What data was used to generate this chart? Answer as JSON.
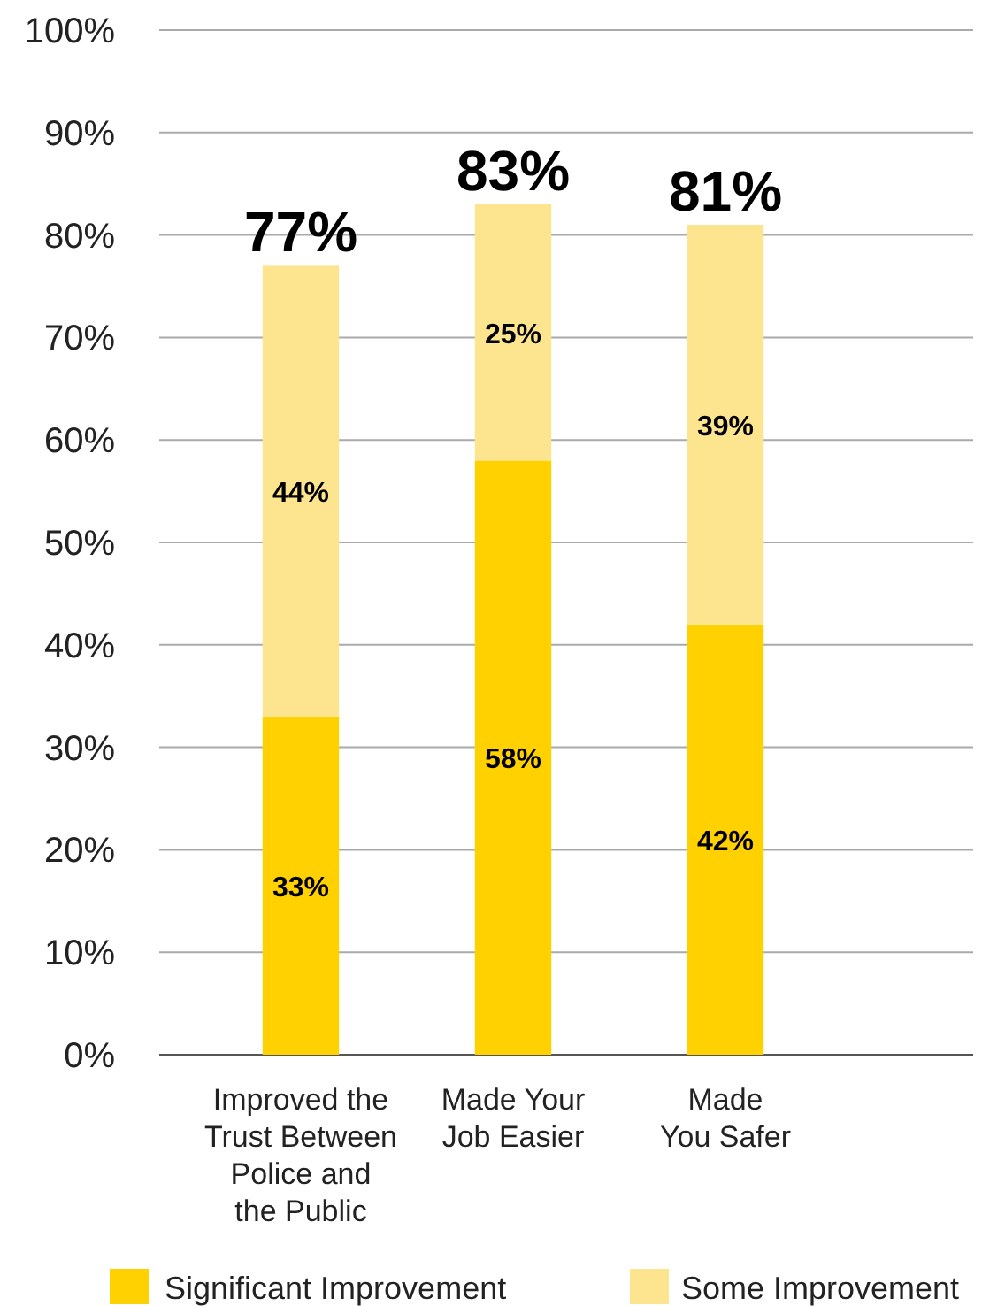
{
  "chart_data": {
    "type": "bar",
    "stacked": true,
    "categories": [
      "Improved the\nTrust Between\nPolice and\nthe Public",
      "Made Your\nJob Easier",
      "Made\nYou Safer"
    ],
    "series": [
      {
        "name": "Significant Improvement",
        "color": "#ffd100",
        "values": [
          33,
          58,
          42
        ],
        "value_labels": [
          "33%",
          "58%",
          "42%"
        ]
      },
      {
        "name": "Some Improvement",
        "color": "#fde48f",
        "values": [
          44,
          25,
          39
        ],
        "value_labels": [
          "44%",
          "25%",
          "39%"
        ]
      }
    ],
    "totals": [
      "77%",
      "83%",
      "81%"
    ],
    "ylim": [
      0,
      100
    ],
    "yticks": [
      {
        "value": 0,
        "label": "0%"
      },
      {
        "value": 10,
        "label": "10%"
      },
      {
        "value": 20,
        "label": "20%"
      },
      {
        "value": 30,
        "label": "30%"
      },
      {
        "value": 40,
        "label": "40%"
      },
      {
        "value": 50,
        "label": "50%"
      },
      {
        "value": 60,
        "label": "60%"
      },
      {
        "value": 70,
        "label": "70%"
      },
      {
        "value": 80,
        "label": "80%"
      },
      {
        "value": 90,
        "label": "90%"
      },
      {
        "value": 100,
        "label": "100%"
      }
    ],
    "grid": "y",
    "legend": "bottom"
  }
}
